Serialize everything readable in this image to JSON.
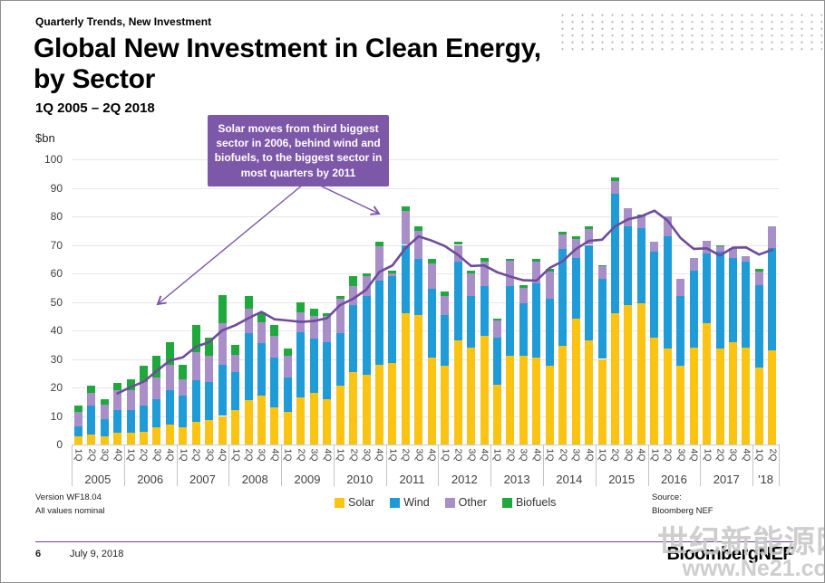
{
  "slide": {
    "kicker": "Quarterly Trends, New Investment",
    "title": "Global New Investment in Clean Energy, by Sector",
    "subtitle": "1Q 2005 – 2Q 2018",
    "unit_label": "$bn",
    "version_note_line1": "Version WF18.04",
    "version_note_line2": "All values nominal",
    "source_line1": "Source:",
    "source_line2": "Bloomberg NEF",
    "page_number": "6",
    "date": "July 9, 2018",
    "logo": "BloombergNEF",
    "watermark_line1": "世纪新能源网",
    "watermark_line2": "www.Ne21.com"
  },
  "annotation": {
    "text": "Solar moves from third biggest sector in 2006, behind wind and biofuels, to the biggest sector in most quarters by 2011"
  },
  "chart_data": {
    "type": "bar",
    "stacked": true,
    "title": "Global New Investment in Clean Energy, by Sector",
    "xlabel": "",
    "ylabel": "$bn",
    "ylim": [
      0,
      100
    ],
    "ytick_step": 10,
    "grid": true,
    "legend_position": "bottom",
    "quarter_labels": [
      "1Q",
      "2Q",
      "3Q",
      "4Q",
      "1Q",
      "2Q",
      "3Q",
      "4Q",
      "1Q",
      "2Q",
      "3Q",
      "4Q",
      "1Q",
      "2Q",
      "3Q",
      "4Q",
      "1Q",
      "2Q",
      "3Q",
      "4Q",
      "1Q",
      "2Q",
      "3Q",
      "4Q",
      "1Q",
      "2Q",
      "3Q",
      "4Q",
      "1Q",
      "2Q",
      "3Q",
      "4Q",
      "1Q",
      "2Q",
      "3Q",
      "4Q",
      "1Q",
      "2Q",
      "3Q",
      "4Q",
      "1Q",
      "2Q",
      "3Q",
      "4Q",
      "1Q",
      "2Q",
      "3Q",
      "4Q",
      "1Q",
      "2Q",
      "3Q",
      "4Q",
      "1Q",
      "2Q"
    ],
    "year_groups": [
      {
        "label": "2005",
        "count": 4
      },
      {
        "label": "2006",
        "count": 4
      },
      {
        "label": "2007",
        "count": 4
      },
      {
        "label": "2008",
        "count": 4
      },
      {
        "label": "2009",
        "count": 4
      },
      {
        "label": "2010",
        "count": 4
      },
      {
        "label": "2011",
        "count": 4
      },
      {
        "label": "2012",
        "count": 4
      },
      {
        "label": "2013",
        "count": 4
      },
      {
        "label": "2014",
        "count": 4
      },
      {
        "label": "2015",
        "count": 4
      },
      {
        "label": "2016",
        "count": 4
      },
      {
        "label": "2017",
        "count": 4
      },
      {
        "label": "'18",
        "count": 2
      }
    ],
    "series": [
      {
        "name": "Solar",
        "color": "#FBC412",
        "values": [
          3,
          3.5,
          3,
          4,
          4,
          4.5,
          6,
          7,
          6,
          8,
          8.5,
          10,
          12,
          15.5,
          17,
          13,
          11.5,
          16.5,
          18,
          16,
          20.5,
          25.5,
          24.5,
          28,
          28.5,
          46,
          45.5,
          30.5,
          27.5,
          36.5,
          34,
          38,
          21,
          31,
          31,
          30.5,
          27.5,
          34.5,
          44,
          36.5,
          30,
          46,
          49,
          49.5,
          37.5,
          33.5,
          27.5,
          34,
          42.5,
          33.5,
          36,
          34,
          27,
          33
        ]
      },
      {
        "name": "Wind",
        "color": "#1F9CD8",
        "values": [
          3.5,
          10,
          6,
          8,
          8,
          9,
          10,
          12,
          11,
          14.5,
          13.5,
          18,
          13.5,
          23.5,
          18.5,
          17.5,
          12,
          23,
          19,
          20,
          18.5,
          23.5,
          27.5,
          29.5,
          30.5,
          24,
          19.5,
          24,
          18,
          27.5,
          18,
          17.5,
          16.5,
          24.5,
          18.5,
          26,
          23.5,
          34,
          21.5,
          33.5,
          28,
          42,
          27.5,
          26.5,
          30,
          39.5,
          24.5,
          27,
          24.5,
          34,
          29.5,
          30,
          29,
          36
        ]
      },
      {
        "name": "Other",
        "color": "#A88FC8",
        "values": [
          5,
          4.5,
          5,
          7,
          7,
          8.5,
          7.5,
          9,
          6,
          10,
          9,
          14.5,
          6,
          8.5,
          7.5,
          7.5,
          7.5,
          7,
          8,
          9,
          12,
          6.5,
          7,
          12,
          1,
          12,
          10,
          9,
          6.5,
          6,
          8,
          8.5,
          6,
          9,
          5.5,
          7.5,
          9.5,
          5,
          6.5,
          5.5,
          4.5,
          4.5,
          6.5,
          4,
          3.5,
          7,
          6,
          4.5,
          4.5,
          2,
          3.5,
          2,
          4.5,
          7.5
        ]
      },
      {
        "name": "Biofuels",
        "color": "#1FA83C",
        "values": [
          2,
          2.5,
          2,
          2.5,
          4,
          5.5,
          7.5,
          8,
          5,
          9.5,
          6.5,
          10,
          3.5,
          4.5,
          3.5,
          4,
          2.5,
          3.5,
          2.5,
          1,
          1,
          3.5,
          1,
          1.5,
          1,
          1.5,
          1.5,
          1.5,
          1.5,
          1,
          1,
          1.5,
          0.5,
          0.5,
          1,
          1,
          1,
          1,
          1,
          1,
          0.5,
          1,
          0,
          0.5,
          0,
          0,
          0,
          0,
          0,
          0.5,
          0,
          0,
          1,
          0
        ]
      }
    ],
    "trend_line": {
      "name": "trend",
      "color": "#6F4B9B",
      "start_index": 3,
      "values": [
        17.9,
        20.1,
        22,
        25.8,
        29.4,
        30.6,
        34.3,
        35.9,
        40,
        41.8,
        44.3,
        46.5,
        43.9,
        43.5,
        43,
        43.3,
        44.3,
        48.9,
        51.1,
        54.3,
        60.5,
        62.8,
        68.9,
        73,
        71.5,
        69.6,
        66.5,
        62.6,
        62.8,
        60.4,
        58.9,
        57.6,
        57.5,
        61.9,
        64.3,
        68.5,
        71.4,
        71.8,
        76.5,
        79,
        80,
        82,
        78.6,
        72.4,
        68.6,
        68.8,
        66.3,
        69,
        69.1,
        66.6,
        68.3
      ]
    }
  }
}
